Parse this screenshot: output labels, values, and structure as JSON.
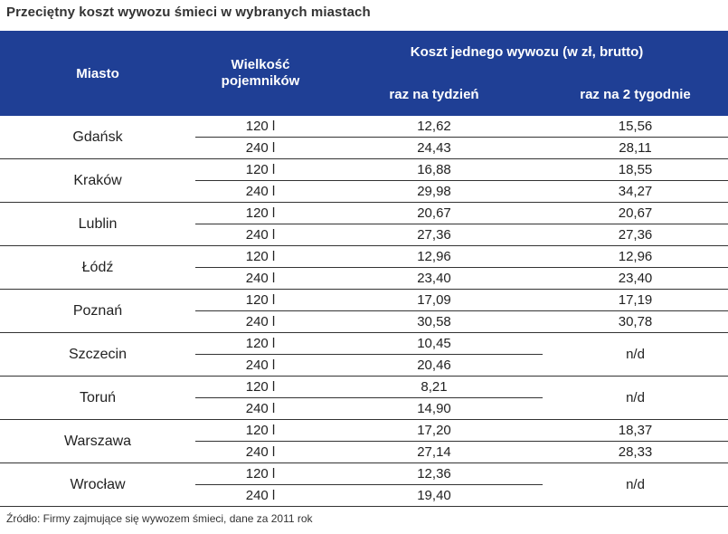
{
  "title": "Przeciętny koszt wywozu śmieci w wybranych  miastach",
  "headers": {
    "city": "Miasto",
    "size": "Wielkość pojemników",
    "cost_group": "Koszt jednego wywozu (w zł, brutto)",
    "weekly": "raz na tydzień",
    "biweekly": "raz na 2 tygodnie"
  },
  "rows": [
    {
      "city": "Gdańsk",
      "s1": "120 l",
      "w1": "12,62",
      "b1": "15,56",
      "s2": "240 l",
      "w2": "24,43",
      "b2": "28,11"
    },
    {
      "city": "Kraków",
      "s1": "120 l",
      "w1": "16,88",
      "b1": "18,55",
      "s2": "240 l",
      "w2": "29,98",
      "b2": "34,27"
    },
    {
      "city": "Lublin",
      "s1": "120 l",
      "w1": "20,67",
      "b1": "20,67",
      "s2": "240 l",
      "w2": "27,36",
      "b2": "27,36"
    },
    {
      "city": "Łódź",
      "s1": "120 l",
      "w1": "12,96",
      "b1": "12,96",
      "s2": "240 l",
      "w2": "23,40",
      "b2": "23,40"
    },
    {
      "city": "Poznań",
      "s1": "120 l",
      "w1": "17,09",
      "b1": "17,19",
      "s2": "240 l",
      "w2": "30,58",
      "b2": "30,78"
    },
    {
      "city": "Szczecin",
      "s1": "120 l",
      "w1": "10,45",
      "s2": "240 l",
      "w2": "20,46",
      "b_merged": "n/d"
    },
    {
      "city": "Toruń",
      "s1": "120 l",
      "w1": "8,21",
      "s2": "240 l",
      "w2": "14,90",
      "b_merged": "n/d"
    },
    {
      "city": "Warszawa",
      "s1": "120 l",
      "w1": "17,20",
      "b1": "18,37",
      "s2": "240 l",
      "w2": "27,14",
      "b2": "28,33"
    },
    {
      "city": "Wrocław",
      "s1": "120 l",
      "w1": "12,36",
      "s2": "240 l",
      "w2": "19,40",
      "b_merged": "n/d"
    }
  ],
  "source": "Źródło: Firmy zajmujące się wywozem śmieci, dane za 2011 rok"
}
